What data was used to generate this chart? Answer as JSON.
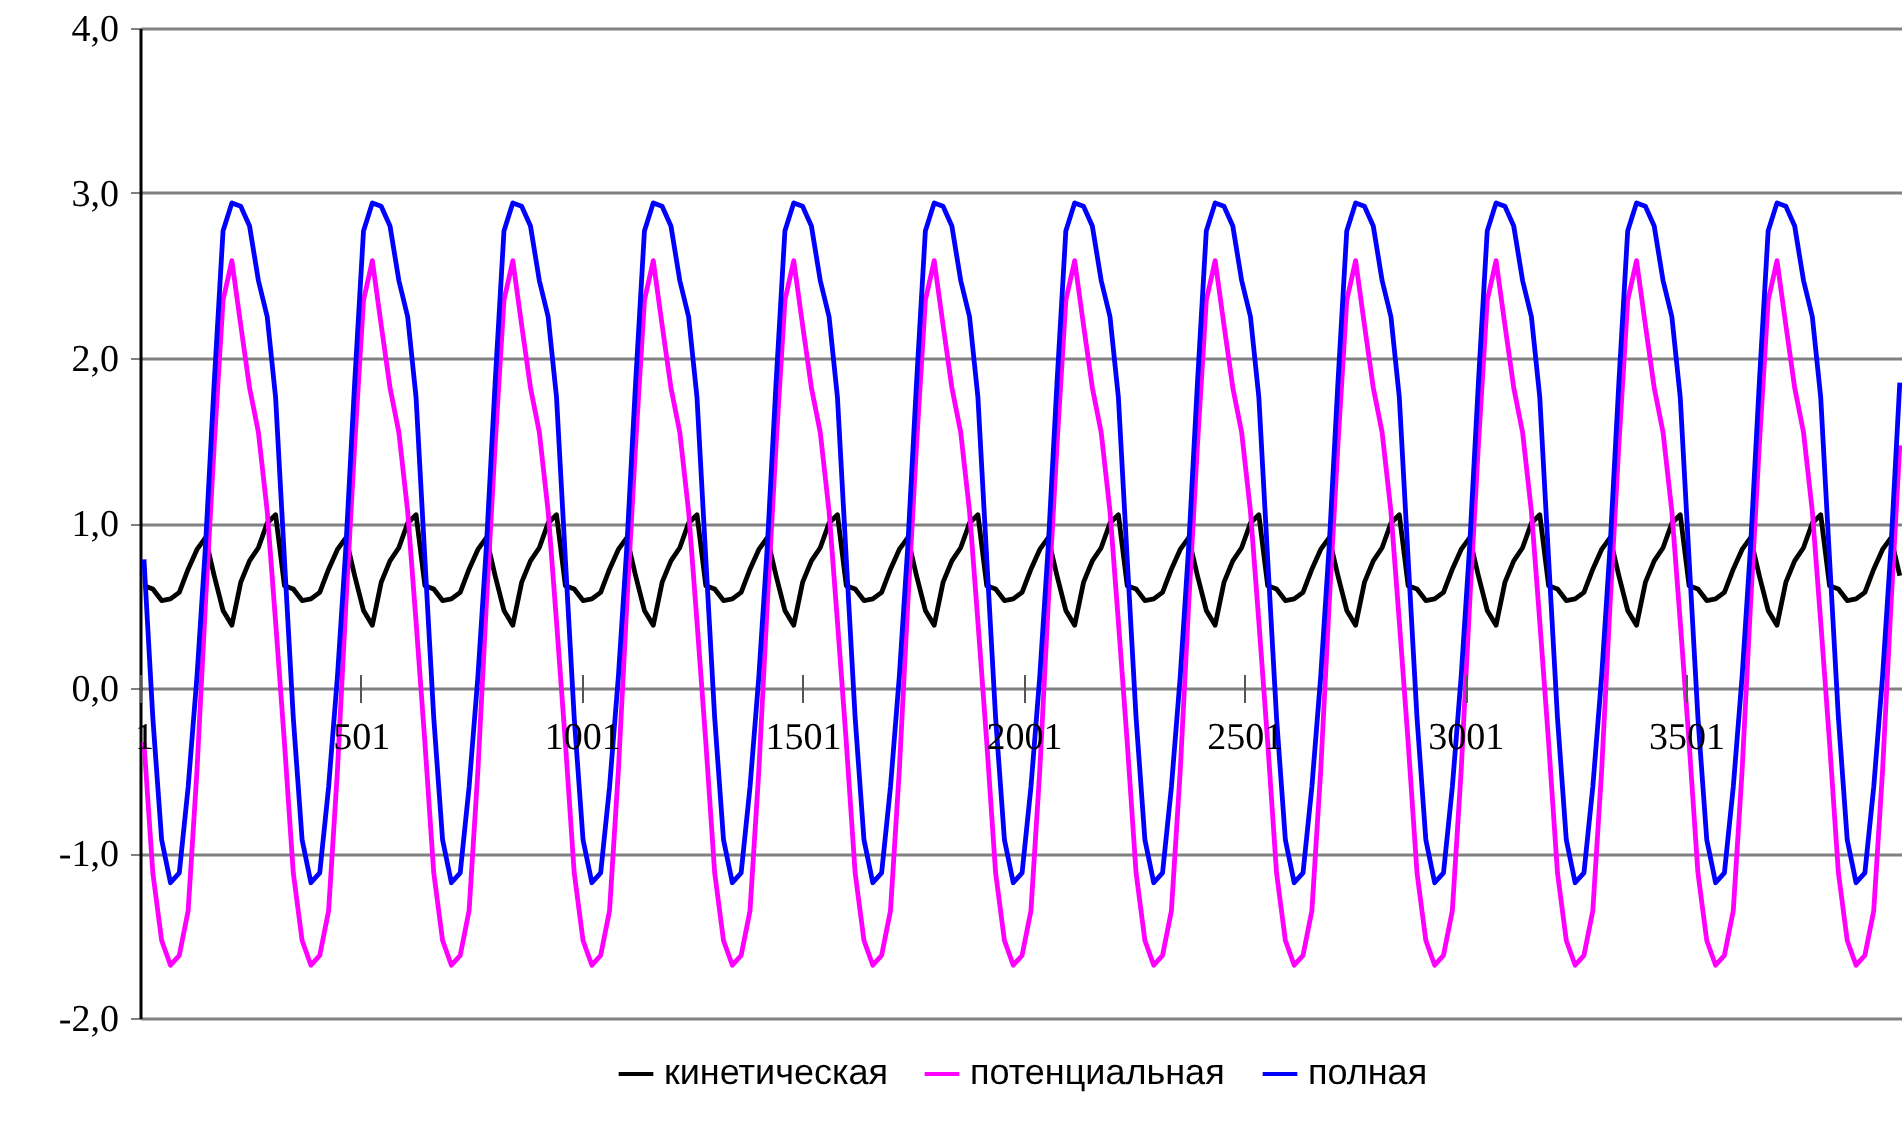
{
  "chart_data": {
    "type": "line",
    "x": [
      10,
      30,
      50,
      70,
      90,
      110,
      130,
      149,
      169,
      189,
      209,
      229,
      249,
      269,
      289,
      308,
      328,
      348,
      368,
      388,
      408,
      428,
      448,
      467,
      487,
      507,
      527,
      547,
      567,
      587,
      607,
      626,
      646,
      666,
      686,
      706,
      726,
      746,
      766,
      785,
      805,
      825,
      845,
      865,
      885,
      905,
      925,
      944,
      964,
      984,
      1004,
      1024,
      1044,
      1064,
      1084,
      1103,
      1123,
      1143,
      1163,
      1183,
      1203,
      1223,
      1243,
      1262,
      1282,
      1302,
      1322,
      1342,
      1362,
      1382,
      1402,
      1421,
      1441,
      1461,
      1481,
      1501,
      1521,
      1541,
      1561,
      1580,
      1600,
      1620,
      1640,
      1660,
      1680,
      1700,
      1720,
      1739,
      1759,
      1779,
      1799,
      1819,
      1839,
      1859,
      1879,
      1898,
      1918,
      1938,
      1958,
      1978,
      1998,
      2018,
      2038,
      2057,
      2077,
      2097,
      2117,
      2137,
      2157,
      2177,
      2197,
      2216,
      2236,
      2256,
      2276,
      2296,
      2316,
      2336,
      2356,
      2375,
      2395,
      2415,
      2435,
      2455,
      2475,
      2495,
      2515,
      2534,
      2554,
      2574,
      2594,
      2614,
      2634,
      2654,
      2674,
      2693,
      2713,
      2733,
      2753,
      2773,
      2793,
      2813,
      2833,
      2852,
      2872,
      2892,
      2912,
      2932,
      2952,
      2972,
      2992,
      3011,
      3031,
      3051,
      3071,
      3091,
      3111,
      3131,
      3151,
      3170,
      3190,
      3210,
      3230,
      3250,
      3270,
      3290,
      3310,
      3329,
      3349,
      3369,
      3389,
      3409,
      3429,
      3449,
      3469,
      3488,
      3508,
      3528,
      3548,
      3568,
      3588,
      3608,
      3628,
      3647,
      3667,
      3687,
      3707,
      3727,
      3747,
      3767,
      3787,
      3806,
      3826,
      3846,
      3866,
      3886,
      3906,
      3926,
      3946,
      3965,
      3985
    ],
    "series": [
      {
        "name": "кинетическая",
        "color": "#000000",
        "values": [
          0.62,
          0.6,
          0.53,
          0.54,
          0.58,
          0.72,
          0.84,
          0.91,
          0.68,
          0.47,
          0.38,
          0.64,
          0.77,
          0.85,
          1.0,
          1.05,
          0.62,
          0.6,
          0.53,
          0.54,
          0.58,
          0.72,
          0.84,
          0.91,
          0.68,
          0.47,
          0.38,
          0.64,
          0.77,
          0.85,
          1.0,
          1.05,
          0.62,
          0.6,
          0.53,
          0.54,
          0.58,
          0.72,
          0.84,
          0.91,
          0.68,
          0.47,
          0.38,
          0.64,
          0.77,
          0.85,
          1.0,
          1.05,
          0.62,
          0.6,
          0.53,
          0.54,
          0.58,
          0.72,
          0.84,
          0.91,
          0.68,
          0.47,
          0.38,
          0.64,
          0.77,
          0.85,
          1.0,
          1.05,
          0.62,
          0.6,
          0.53,
          0.54,
          0.58,
          0.72,
          0.84,
          0.91,
          0.68,
          0.47,
          0.38,
          0.64,
          0.77,
          0.85,
          1.0,
          1.05,
          0.62,
          0.6,
          0.53,
          0.54,
          0.58,
          0.72,
          0.84,
          0.91,
          0.68,
          0.47,
          0.38,
          0.64,
          0.77,
          0.85,
          1.0,
          1.05,
          0.62,
          0.6,
          0.53,
          0.54,
          0.58,
          0.72,
          0.84,
          0.91,
          0.68,
          0.47,
          0.38,
          0.64,
          0.77,
          0.85,
          1.0,
          1.05,
          0.62,
          0.6,
          0.53,
          0.54,
          0.58,
          0.72,
          0.84,
          0.91,
          0.68,
          0.47,
          0.38,
          0.64,
          0.77,
          0.85,
          1.0,
          1.05,
          0.62,
          0.6,
          0.53,
          0.54,
          0.58,
          0.72,
          0.84,
          0.91,
          0.68,
          0.47,
          0.38,
          0.64,
          0.77,
          0.85,
          1.0,
          1.05,
          0.62,
          0.6,
          0.53,
          0.54,
          0.58,
          0.72,
          0.84,
          0.91,
          0.68,
          0.47,
          0.38,
          0.64,
          0.77,
          0.85,
          1.0,
          1.05,
          0.62,
          0.6,
          0.53,
          0.54,
          0.58,
          0.72,
          0.84,
          0.91,
          0.68,
          0.47,
          0.38,
          0.64,
          0.77,
          0.85,
          1.0,
          1.05,
          0.62,
          0.6,
          0.53,
          0.54,
          0.58,
          0.72,
          0.84,
          0.91,
          0.68,
          0.47,
          0.38,
          0.64,
          0.77,
          0.85,
          1.0,
          1.05,
          0.62,
          0.6,
          0.53,
          0.54,
          0.58,
          0.72,
          0.84,
          0.91,
          0.68
        ]
      },
      {
        "name": "потенциальная",
        "color": "#ff00ff",
        "values": [
          -0.33,
          -1.12,
          -1.53,
          -1.68,
          -1.62,
          -1.35,
          -0.5,
          0.5,
          1.47,
          2.35,
          2.59,
          2.2,
          1.82,
          1.55,
          1.07,
          0.4,
          -0.33,
          -1.12,
          -1.53,
          -1.68,
          -1.62,
          -1.35,
          -0.5,
          0.5,
          1.47,
          2.35,
          2.59,
          2.2,
          1.82,
          1.55,
          1.07,
          0.4,
          -0.33,
          -1.12,
          -1.53,
          -1.68,
          -1.62,
          -1.35,
          -0.5,
          0.5,
          1.47,
          2.35,
          2.59,
          2.2,
          1.82,
          1.55,
          1.07,
          0.4,
          -0.33,
          -1.12,
          -1.53,
          -1.68,
          -1.62,
          -1.35,
          -0.5,
          0.5,
          1.47,
          2.35,
          2.59,
          2.2,
          1.82,
          1.55,
          1.07,
          0.4,
          -0.33,
          -1.12,
          -1.53,
          -1.68,
          -1.62,
          -1.35,
          -0.5,
          0.5,
          1.47,
          2.35,
          2.59,
          2.2,
          1.82,
          1.55,
          1.07,
          0.4,
          -0.33,
          -1.12,
          -1.53,
          -1.68,
          -1.62,
          -1.35,
          -0.5,
          0.5,
          1.47,
          2.35,
          2.59,
          2.2,
          1.82,
          1.55,
          1.07,
          0.4,
          -0.33,
          -1.12,
          -1.53,
          -1.68,
          -1.62,
          -1.35,
          -0.5,
          0.5,
          1.47,
          2.35,
          2.59,
          2.2,
          1.82,
          1.55,
          1.07,
          0.4,
          -0.33,
          -1.12,
          -1.53,
          -1.68,
          -1.62,
          -1.35,
          -0.5,
          0.5,
          1.47,
          2.35,
          2.59,
          2.2,
          1.82,
          1.55,
          1.07,
          0.4,
          -0.33,
          -1.12,
          -1.53,
          -1.68,
          -1.62,
          -1.35,
          -0.5,
          0.5,
          1.47,
          2.35,
          2.59,
          2.2,
          1.82,
          1.55,
          1.07,
          0.4,
          -0.33,
          -1.12,
          -1.53,
          -1.68,
          -1.62,
          -1.35,
          -0.5,
          0.5,
          1.47,
          2.35,
          2.59,
          2.2,
          1.82,
          1.55,
          1.07,
          0.4,
          -0.33,
          -1.12,
          -1.53,
          -1.68,
          -1.62,
          -1.35,
          -0.5,
          0.5,
          1.47,
          2.35,
          2.59,
          2.2,
          1.82,
          1.55,
          1.07,
          0.4,
          -0.33,
          -1.12,
          -1.53,
          -1.68,
          -1.62,
          -1.35,
          -0.5,
          0.5,
          1.47,
          2.35,
          2.59,
          2.2,
          1.82,
          1.55,
          1.07,
          0.4,
          -0.33,
          -1.12,
          -1.53,
          -1.68,
          -1.62,
          -1.35,
          -0.5,
          0.5,
          1.47
        ]
      },
      {
        "name": "полная",
        "color": "#0000ff",
        "values": [
          0.78,
          -0.18,
          -0.92,
          -1.18,
          -1.12,
          -0.6,
          0.07,
          0.85,
          1.85,
          2.77,
          2.94,
          2.92,
          2.8,
          2.47,
          2.25,
          1.76,
          0.78,
          -0.18,
          -0.92,
          -1.18,
          -1.12,
          -0.6,
          0.07,
          0.85,
          1.85,
          2.77,
          2.94,
          2.92,
          2.8,
          2.47,
          2.25,
          1.76,
          0.78,
          -0.18,
          -0.92,
          -1.18,
          -1.12,
          -0.6,
          0.07,
          0.85,
          1.85,
          2.77,
          2.94,
          2.92,
          2.8,
          2.47,
          2.25,
          1.76,
          0.78,
          -0.18,
          -0.92,
          -1.18,
          -1.12,
          -0.6,
          0.07,
          0.85,
          1.85,
          2.77,
          2.94,
          2.92,
          2.8,
          2.47,
          2.25,
          1.76,
          0.78,
          -0.18,
          -0.92,
          -1.18,
          -1.12,
          -0.6,
          0.07,
          0.85,
          1.85,
          2.77,
          2.94,
          2.92,
          2.8,
          2.47,
          2.25,
          1.76,
          0.78,
          -0.18,
          -0.92,
          -1.18,
          -1.12,
          -0.6,
          0.07,
          0.85,
          1.85,
          2.77,
          2.94,
          2.92,
          2.8,
          2.47,
          2.25,
          1.76,
          0.78,
          -0.18,
          -0.92,
          -1.18,
          -1.12,
          -0.6,
          0.07,
          0.85,
          1.85,
          2.77,
          2.94,
          2.92,
          2.8,
          2.47,
          2.25,
          1.76,
          0.78,
          -0.18,
          -0.92,
          -1.18,
          -1.12,
          -0.6,
          0.07,
          0.85,
          1.85,
          2.77,
          2.94,
          2.92,
          2.8,
          2.47,
          2.25,
          1.76,
          0.78,
          -0.18,
          -0.92,
          -1.18,
          -1.12,
          -0.6,
          0.07,
          0.85,
          1.85,
          2.77,
          2.94,
          2.92,
          2.8,
          2.47,
          2.25,
          1.76,
          0.78,
          -0.18,
          -0.92,
          -1.18,
          -1.12,
          -0.6,
          0.07,
          0.85,
          1.85,
          2.77,
          2.94,
          2.92,
          2.8,
          2.47,
          2.25,
          1.76,
          0.78,
          -0.18,
          -0.92,
          -1.18,
          -1.12,
          -0.6,
          0.07,
          0.85,
          1.85,
          2.77,
          2.94,
          2.92,
          2.8,
          2.47,
          2.25,
          1.76,
          0.78,
          -0.18,
          -0.92,
          -1.18,
          -1.12,
          -0.6,
          0.07,
          0.85,
          1.85,
          2.77,
          2.94,
          2.92,
          2.8,
          2.47,
          2.25,
          1.76,
          0.78,
          -0.18,
          -0.92,
          -1.18,
          -1.12,
          -0.6,
          0.07,
          0.85,
          1.85
        ]
      }
    ],
    "xlim": [
      1,
      3990
    ],
    "xticks": [
      1,
      501,
      1001,
      1501,
      2001,
      2501,
      3001,
      3501
    ],
    "ylim": [
      -2,
      4
    ],
    "yticks": [
      {
        "value": -2,
        "label": "-2,0"
      },
      {
        "value": -1,
        "label": "-1,0"
      },
      {
        "value": 0,
        "label": "0,0"
      },
      {
        "value": 1,
        "label": "1,0"
      },
      {
        "value": 2,
        "label": "2,0"
      },
      {
        "value": 3,
        "label": "3,0"
      },
      {
        "value": 4,
        "label": "4,0"
      }
    ],
    "grid": "y",
    "legend": "bottom"
  }
}
